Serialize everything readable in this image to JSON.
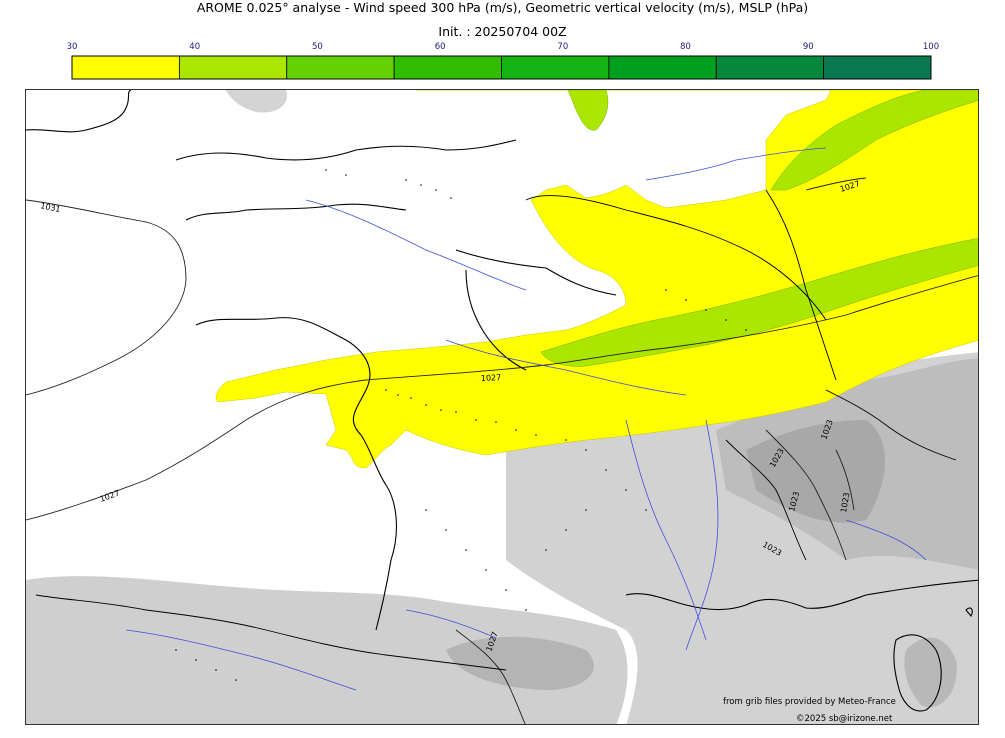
{
  "header": {
    "title": "AROME 0.025° analyse - Wind speed 300 hPa (m/s), Geometric vertical velocity (m/s), MSLP (hPa)",
    "subtitle": "Init. : 20250704 00Z"
  },
  "colorbar": {
    "ticks": [
      "30",
      "40",
      "50",
      "60",
      "70",
      "80",
      "90",
      "100"
    ],
    "colors": [
      "#ffff00",
      "#aae600",
      "#64d200",
      "#32be00",
      "#14b414",
      "#00a01e",
      "#05873c",
      "#0a7850"
    ]
  },
  "map": {
    "region": "France / Western Europe",
    "isobar_labels": [
      "1031",
      "1027",
      "1027",
      "1027",
      "1027",
      "1023",
      "1023",
      "1023",
      "1023",
      "1023"
    ],
    "colors": {
      "jet_30_40": "#ffff00",
      "jet_40_50": "#aae600",
      "terrain_gray": "#c8c8c8",
      "rivers": "#3c50dc",
      "coast": "#000000"
    }
  },
  "footer": {
    "source_credit": "from grib files provided by Meteo-France",
    "copyright": "©2025 sb@irizone.net"
  }
}
